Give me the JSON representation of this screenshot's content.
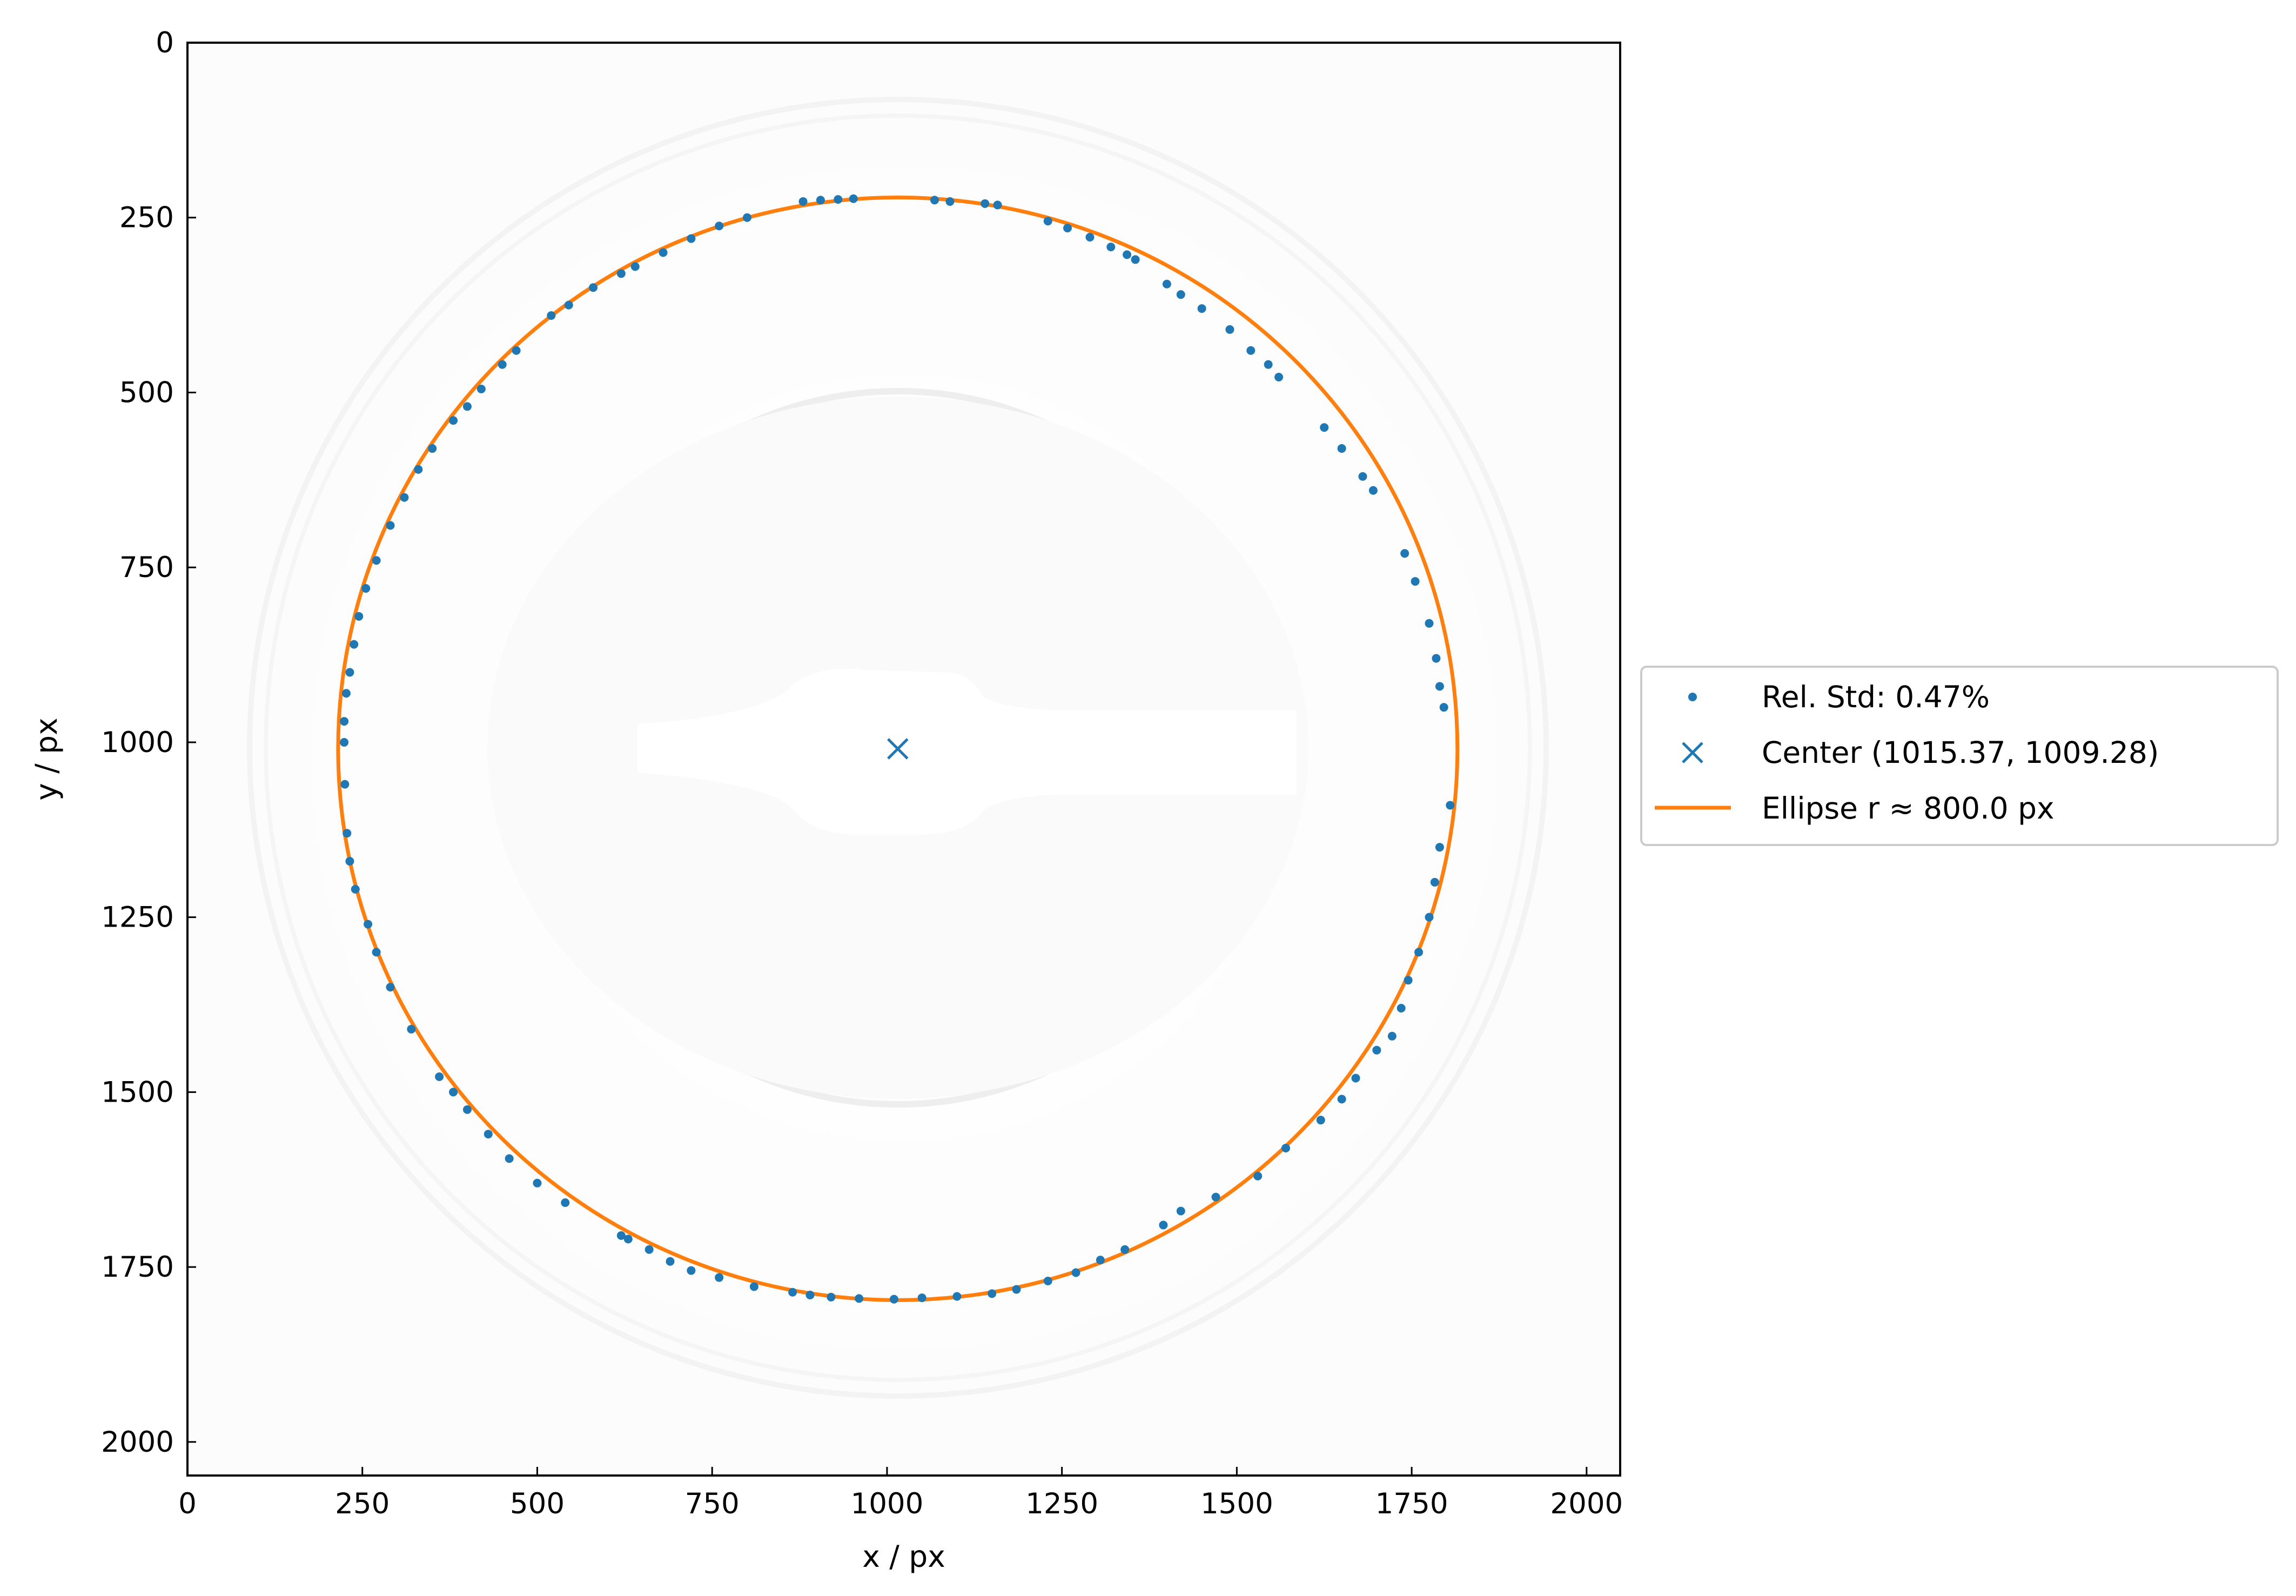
{
  "chart_data": {
    "type": "scatter",
    "title": "",
    "xlabel": "x / px",
    "ylabel": "y / px",
    "xlim": [
      0,
      2048
    ],
    "ylim": [
      2048,
      0
    ],
    "y_inverted": true,
    "xticks": [
      0,
      250,
      500,
      750,
      1000,
      1250,
      1500,
      1750,
      2000
    ],
    "yticks": [
      0,
      250,
      500,
      750,
      1000,
      1250,
      1500,
      1750,
      2000
    ],
    "xtick_labels": [
      "0",
      "250",
      "500",
      "750",
      "1000",
      "1250",
      "1500",
      "1750",
      "2000"
    ],
    "ytick_labels": [
      "0",
      "250",
      "500",
      "750",
      "1000",
      "1250",
      "1500",
      "1750",
      "2000"
    ],
    "grid": false,
    "legend_position": "center-right outside",
    "background_image": "grayscale detector diffraction pattern with faint concentric rings and a central beamstop shadow",
    "series": [
      {
        "name": "Rel. Std: 0.47%",
        "kind": "scatter",
        "marker": "dot",
        "color": "#1f77b4",
        "points": [
          [
            880,
            227
          ],
          [
            905,
            225
          ],
          [
            930,
            224
          ],
          [
            952,
            223
          ],
          [
            1068,
            225
          ],
          [
            1090,
            227
          ],
          [
            1140,
            230
          ],
          [
            1158,
            232
          ],
          [
            1230,
            255
          ],
          [
            1258,
            265
          ],
          [
            1290,
            278
          ],
          [
            1320,
            292
          ],
          [
            1343,
            303
          ],
          [
            1355,
            310
          ],
          [
            1400,
            345
          ],
          [
            1420,
            360
          ],
          [
            1450,
            380
          ],
          [
            1490,
            410
          ],
          [
            1520,
            440
          ],
          [
            1545,
            460
          ],
          [
            1560,
            478
          ],
          [
            1625,
            550
          ],
          [
            1650,
            580
          ],
          [
            1680,
            620
          ],
          [
            1695,
            640
          ],
          [
            1740,
            730
          ],
          [
            1755,
            770
          ],
          [
            1775,
            830
          ],
          [
            1785,
            880
          ],
          [
            1790,
            920
          ],
          [
            1796,
            950
          ],
          [
            1805,
            1090
          ],
          [
            1790,
            1150
          ],
          [
            1783,
            1200
          ],
          [
            1775,
            1250
          ],
          [
            1760,
            1300
          ],
          [
            1745,
            1340
          ],
          [
            1735,
            1380
          ],
          [
            1722,
            1420
          ],
          [
            1700,
            1440
          ],
          [
            1670,
            1480
          ],
          [
            1650,
            1510
          ],
          [
            1620,
            1540
          ],
          [
            1570,
            1580
          ],
          [
            1530,
            1620
          ],
          [
            1470,
            1650
          ],
          [
            1420,
            1670
          ],
          [
            1395,
            1690
          ],
          [
            1340,
            1725
          ],
          [
            1305,
            1740
          ],
          [
            1270,
            1758
          ],
          [
            1230,
            1770
          ],
          [
            1185,
            1782
          ],
          [
            1150,
            1788
          ],
          [
            1100,
            1792
          ],
          [
            1050,
            1794
          ],
          [
            1010,
            1796
          ],
          [
            960,
            1795
          ],
          [
            920,
            1793
          ],
          [
            890,
            1790
          ],
          [
            865,
            1786
          ],
          [
            810,
            1778
          ],
          [
            760,
            1765
          ],
          [
            720,
            1755
          ],
          [
            690,
            1742
          ],
          [
            660,
            1725
          ],
          [
            630,
            1710
          ],
          [
            620,
            1705
          ],
          [
            540,
            1658
          ],
          [
            500,
            1630
          ],
          [
            460,
            1595
          ],
          [
            430,
            1560
          ],
          [
            400,
            1525
          ],
          [
            380,
            1500
          ],
          [
            360,
            1478
          ],
          [
            320,
            1410
          ],
          [
            290,
            1350
          ],
          [
            270,
            1300
          ],
          [
            258,
            1260
          ],
          [
            240,
            1210
          ],
          [
            232,
            1170
          ],
          [
            228,
            1130
          ],
          [
            225,
            1060
          ],
          [
            224,
            1000
          ],
          [
            224,
            970
          ],
          [
            227,
            930
          ],
          [
            232,
            900
          ],
          [
            238,
            860
          ],
          [
            245,
            820
          ],
          [
            255,
            780
          ],
          [
            270,
            740
          ],
          [
            290,
            690
          ],
          [
            310,
            650
          ],
          [
            330,
            610
          ],
          [
            350,
            580
          ],
          [
            380,
            540
          ],
          [
            400,
            520
          ],
          [
            420,
            495
          ],
          [
            450,
            460
          ],
          [
            470,
            440
          ],
          [
            520,
            390
          ],
          [
            545,
            375
          ],
          [
            580,
            350
          ],
          [
            620,
            330
          ],
          [
            640,
            320
          ],
          [
            680,
            300
          ],
          [
            720,
            280
          ],
          [
            760,
            262
          ],
          [
            800,
            250
          ]
        ]
      },
      {
        "name": "Center (1015.37, 1009.28)",
        "kind": "marker",
        "marker": "x",
        "color": "#1f77b4",
        "points": [
          [
            1015.37,
            1009.28
          ]
        ]
      },
      {
        "name": "Ellipse r ≈ 800.0 px",
        "kind": "ellipse",
        "color": "#ff7f0e",
        "center": [
          1015.37,
          1009.28
        ],
        "rx": 800.0,
        "ry": 788.0
      }
    ],
    "legend": [
      {
        "label": "Rel. Std: 0.47%",
        "marker": "dot",
        "color": "#1f77b4"
      },
      {
        "label": "Center (1015.37, 1009.28)",
        "marker": "x",
        "color": "#1f77b4"
      },
      {
        "label": "Ellipse r ≈ 800.0 px",
        "marker": "line",
        "color": "#ff7f0e"
      }
    ]
  }
}
